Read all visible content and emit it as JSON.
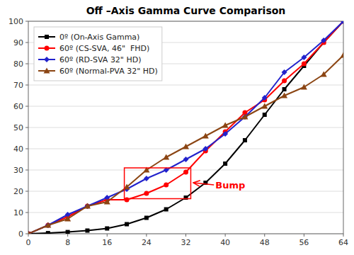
{
  "chart_data": {
    "type": "line",
    "title": "Off –Axis Gamma Curve Comparison",
    "x": [
      0,
      4,
      8,
      12,
      16,
      20,
      24,
      28,
      32,
      36,
      40,
      44,
      48,
      52,
      56,
      60,
      64
    ],
    "series": [
      {
        "name": "0º (On-Axis Gamma)",
        "color": "#000000",
        "marker": "square",
        "values": [
          0,
          0.3,
          0.8,
          1.5,
          2.5,
          4.5,
          7.5,
          11.5,
          17,
          24,
          33,
          44,
          56,
          68,
          79,
          90,
          100
        ]
      },
      {
        "name": "60º (CS-SVA, 46\"  FHD)",
        "color": "#ff0000",
        "marker": "circle",
        "values": [
          0,
          4,
          8,
          13,
          16,
          16,
          19,
          23,
          29,
          39,
          48,
          57,
          63,
          72,
          80,
          90,
          100
        ]
      },
      {
        "name": "60º (RD-SVA 32\" HD)",
        "color": "#2222cc",
        "marker": "diamond",
        "values": [
          0,
          4,
          9,
          13,
          17,
          21,
          26,
          30,
          35,
          40,
          47,
          55,
          64,
          76,
          83,
          91,
          100
        ]
      },
      {
        "name": "60º (Normal-PVA 32\" HD)",
        "color": "#8B4513",
        "marker": "triangle",
        "values": [
          0,
          4,
          7,
          13,
          15,
          22,
          30,
          36,
          41,
          46,
          51,
          55,
          60,
          65,
          69,
          75,
          84
        ]
      }
    ],
    "xlim": [
      0,
      64
    ],
    "xticks": [
      0,
      8,
      16,
      24,
      32,
      40,
      48,
      56,
      64
    ],
    "ylim": [
      0,
      100
    ],
    "yticks": [
      0,
      10,
      20,
      30,
      40,
      50,
      60,
      70,
      80,
      90,
      100
    ],
    "grid": "y",
    "legend": "upper left",
    "highlight": {
      "x": 19.5,
      "y": 16.5,
      "width": 13.5,
      "height": 14.5,
      "color": "#ff0000"
    },
    "annotations": [
      {
        "text": "Bump",
        "x": 38,
        "y": 23,
        "arrow_x": 33.5,
        "arrow_y": 24,
        "color": "#ff0000"
      }
    ]
  }
}
